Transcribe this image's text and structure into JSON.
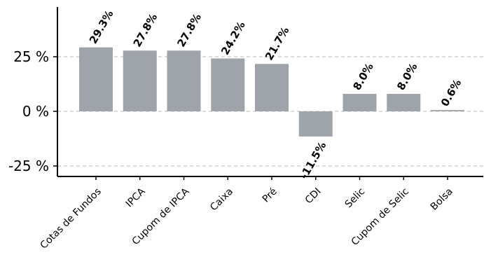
{
  "colors": {
    "bar": "#9ea4aa",
    "axis": "#000000",
    "grid": "#c8c8c8"
  },
  "chart_data": {
    "type": "bar",
    "title": "",
    "xlabel": "",
    "ylabel": "",
    "categories": [
      "Cotas de Fundos",
      "IPCA",
      "Cupom de IPCA",
      "Caixa",
      "Pré",
      "CDI",
      "Selic",
      "Cupom de Selic",
      "Bolsa"
    ],
    "values": [
      29.3,
      27.8,
      27.8,
      24.2,
      21.7,
      -11.5,
      8.0,
      8.0,
      0.6
    ],
    "value_labels": [
      "29.3%",
      "27.8%",
      "27.8%",
      "24.2%",
      "21.7%",
      "-11.5%",
      "8.0%",
      "8.0%",
      "0.6%"
    ],
    "ylim": [
      -30,
      47
    ],
    "yticks": [
      -25,
      0,
      25
    ],
    "ytick_labels": [
      "-25 %",
      "0 %",
      "25 %"
    ],
    "grid": "horizontal dashed at y ticks",
    "legend": "none"
  }
}
